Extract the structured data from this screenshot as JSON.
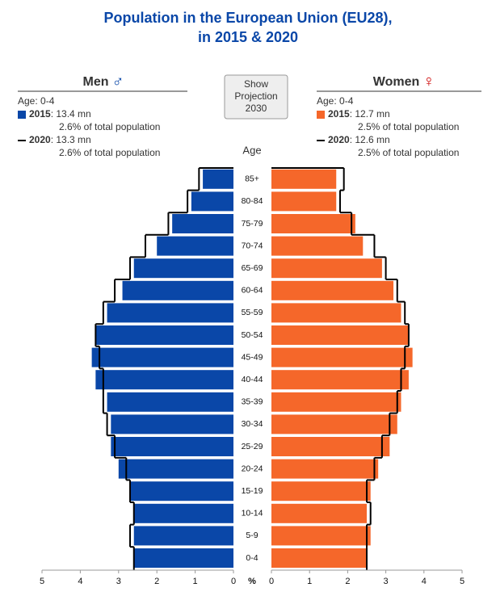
{
  "chart_data": {
    "type": "population-pyramid",
    "title_lines": [
      "Population in the European Union (EU28),",
      "in 2015 & 2020"
    ],
    "button": [
      "Show",
      "Projection",
      "2030"
    ],
    "age_axis_label": "Age",
    "x_axis_label": "%",
    "categories": [
      "0-4",
      "5-9",
      "10-14",
      "15-19",
      "20-24",
      "25-29",
      "30-34",
      "35-39",
      "40-44",
      "45-49",
      "50-54",
      "55-59",
      "60-64",
      "65-69",
      "70-74",
      "75-79",
      "80-84",
      "85+"
    ],
    "xlim": [
      0,
      5
    ],
    "xticks": [
      0,
      1,
      2,
      3,
      4,
      5
    ],
    "sides": [
      {
        "name": "Men",
        "symbol": "♂",
        "symbol_color": "#0a47a8",
        "age_info": "Age: 0-4",
        "series": [
          {
            "name": "2015",
            "color": "#0a47a8",
            "amount": ": 13.4 mn",
            "share": "2.6% of total population",
            "values": [
              2.6,
              2.6,
              2.6,
              2.7,
              3.0,
              3.2,
              3.2,
              3.3,
              3.6,
              3.7,
              3.6,
              3.3,
              2.9,
              2.6,
              2.0,
              1.6,
              1.1,
              0.8
            ]
          },
          {
            "name": "2020",
            "color": "#000000",
            "amount": ": 13.3 mn",
            "share": "2.6% of total population",
            "values": [
              2.6,
              2.7,
              2.6,
              2.7,
              2.8,
              3.1,
              3.3,
              3.4,
              3.4,
              3.5,
              3.6,
              3.4,
              3.1,
              2.7,
              2.3,
              1.7,
              1.2,
              0.9
            ]
          }
        ]
      },
      {
        "name": "Women",
        "symbol": "♀",
        "symbol_color": "#cc0000",
        "age_info": "Age: 0-4",
        "series": [
          {
            "name": "2015",
            "color": "#f5672a",
            "amount": ": 12.7 mn",
            "share": "2.5% of total population",
            "values": [
              2.5,
              2.6,
              2.5,
              2.6,
              2.8,
              3.1,
              3.3,
              3.4,
              3.6,
              3.7,
              3.6,
              3.4,
              3.2,
              2.9,
              2.4,
              2.2,
              1.7,
              1.7
            ]
          },
          {
            "name": "2020",
            "color": "#000000",
            "amount": ": 12.6 mn",
            "share": "2.5% of total population",
            "values": [
              2.5,
              2.5,
              2.6,
              2.5,
              2.7,
              2.9,
              3.1,
              3.3,
              3.4,
              3.5,
              3.6,
              3.5,
              3.3,
              3.0,
              2.7,
              2.1,
              1.8,
              1.9
            ]
          }
        ]
      }
    ]
  }
}
